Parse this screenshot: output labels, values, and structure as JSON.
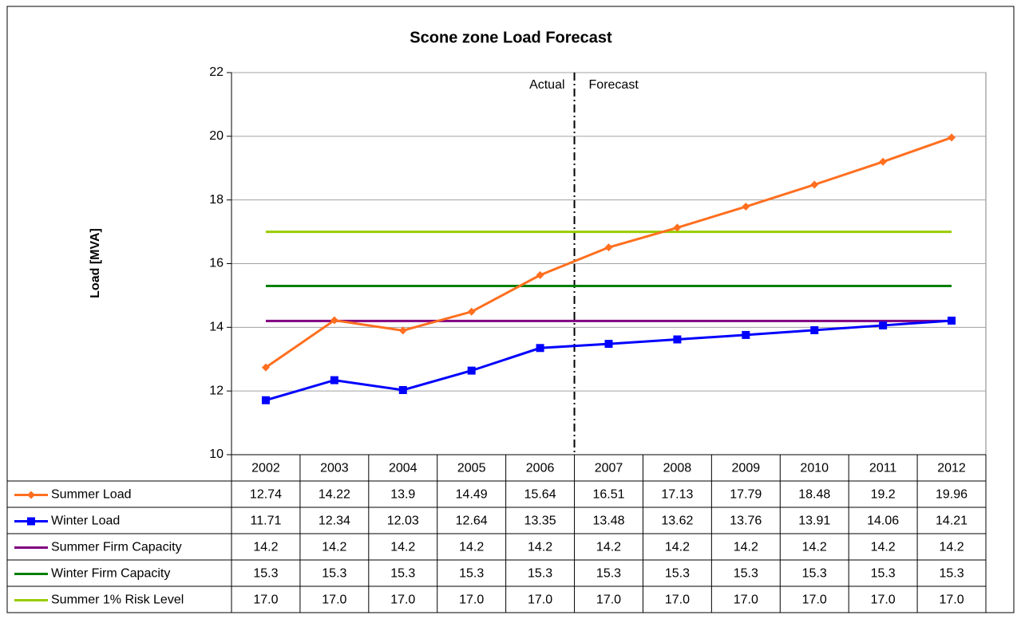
{
  "chart_data": {
    "type": "line",
    "title": "Scone zone Load Forecast",
    "y_label": "Load [MVA]",
    "annotations": [
      "Actual",
      "Forecast"
    ],
    "categories": [
      "2002",
      "2003",
      "2004",
      "2005",
      "2006",
      "2007",
      "2008",
      "2009",
      "2010",
      "2011",
      "2012"
    ],
    "series": [
      {
        "name": "Summer Load",
        "color": "#ff6f1f",
        "marker": "diamond",
        "values": [
          12.74,
          14.22,
          13.9,
          14.49,
          15.64,
          16.51,
          17.13,
          17.79,
          18.48,
          19.2,
          19.96
        ]
      },
      {
        "name": "Winter Load",
        "color": "#0000ff",
        "marker": "square",
        "values": [
          11.71,
          12.34,
          12.03,
          12.64,
          13.35,
          13.48,
          13.62,
          13.76,
          13.91,
          14.06,
          14.21
        ]
      },
      {
        "name": "Summer Firm Capacity",
        "color": "#800080",
        "values": [
          14.2,
          14.2,
          14.2,
          14.2,
          14.2,
          14.2,
          14.2,
          14.2,
          14.2,
          14.2,
          14.2
        ]
      },
      {
        "name": "Winter Firm Capacity",
        "color": "#008000",
        "values": [
          15.3,
          15.3,
          15.3,
          15.3,
          15.3,
          15.3,
          15.3,
          15.3,
          15.3,
          15.3,
          15.3
        ]
      },
      {
        "name": "Summer 1% Risk Level",
        "color": "#99cc00",
        "values": [
          17,
          17,
          17,
          17,
          17,
          17,
          17,
          17,
          17,
          17,
          17
        ],
        "value_labels": [
          "17.0",
          "17.0",
          "17.0",
          "17.0",
          "17.0",
          "17.0",
          "17.0",
          "17.0",
          "17.0",
          "17.0",
          "17.0"
        ]
      }
    ],
    "ylim": [
      10,
      22
    ],
    "yticks": [
      10,
      12,
      14,
      16,
      18,
      20,
      22
    ],
    "grid": true
  }
}
